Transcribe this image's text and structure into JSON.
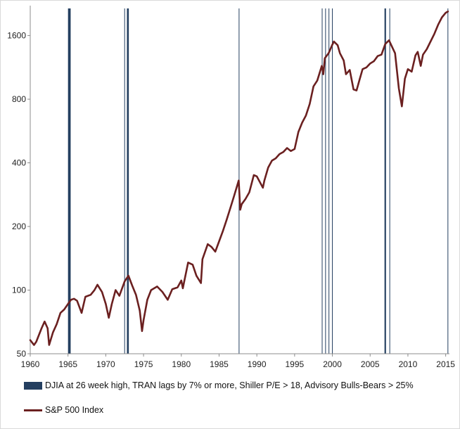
{
  "chart_data": {
    "type": "line",
    "xlim": [
      1960,
      2015.5
    ],
    "ylim": [
      50,
      2150
    ],
    "yscale": "log2",
    "yticks": [
      50,
      100,
      200,
      400,
      800,
      1600
    ],
    "ytick_labels": [
      "50",
      "100",
      "200",
      "400",
      "800",
      "1600"
    ],
    "xticks": [
      1960,
      1965,
      1970,
      1975,
      1980,
      1985,
      1990,
      1995,
      2000,
      2005,
      2010,
      2015
    ],
    "xtick_labels": [
      "1960",
      "1965",
      "1970",
      "1975",
      "1980",
      "1985",
      "1990",
      "1995",
      "2000",
      "2005",
      "2010",
      "2015"
    ],
    "grid": false,
    "legend_position": "bottom",
    "colors": {
      "signal": "#243f60",
      "index": "#6b2020"
    },
    "series": [
      {
        "name": "DJIA at 26 week high, TRAN lags by 7% or more, Shiller P/E > 18, Advisory Bulls-Bears > 25%",
        "kind": "signal-bands",
        "intervals": [
          [
            1965.0,
            1965.35
          ],
          [
            1972.45,
            1972.52
          ],
          [
            1972.8,
            1973.05
          ],
          [
            1987.6,
            1987.68
          ],
          [
            1998.6,
            1998.66
          ],
          [
            1999.05,
            1999.11
          ],
          [
            1999.5,
            1999.56
          ],
          [
            1999.95,
            2000.02
          ],
          [
            2006.9,
            2007.1
          ],
          [
            2007.55,
            2007.62
          ],
          [
            2015.25,
            2015.32
          ]
        ]
      },
      {
        "name": "S&P 500 Index",
        "kind": "line",
        "x": [
          1960,
          1960.5,
          1960.8,
          1961.5,
          1961.9,
          1962.3,
          1962.5,
          1963.0,
          1963.5,
          1964.0,
          1964.5,
          1965.0,
          1965.4,
          1965.8,
          1966.2,
          1966.8,
          1967.3,
          1968.0,
          1968.5,
          1968.9,
          1969.5,
          1970.0,
          1970.4,
          1970.8,
          1971.3,
          1971.8,
          1972.5,
          1973.0,
          1973.5,
          1974.0,
          1974.5,
          1974.8,
          1975.0,
          1975.5,
          1976.0,
          1976.8,
          1977.5,
          1978.2,
          1978.8,
          1979.5,
          1980.0,
          1980.2,
          1980.9,
          1981.5,
          1982.0,
          1982.6,
          1982.8,
          1983.5,
          1984.0,
          1984.5,
          1985.0,
          1985.5,
          1986.0,
          1986.5,
          1987.0,
          1987.6,
          1987.8,
          1988.0,
          1988.5,
          1989.0,
          1989.6,
          1990.0,
          1990.8,
          1991.0,
          1991.5,
          1992.0,
          1992.5,
          1993.0,
          1993.5,
          1994.0,
          1994.5,
          1995.0,
          1995.5,
          1996.0,
          1996.5,
          1997.0,
          1997.5,
          1998.0,
          1998.6,
          1998.8,
          1999.0,
          1999.5,
          2000.0,
          2000.2,
          2000.7,
          2001.0,
          2001.5,
          2001.8,
          2002.3,
          2002.8,
          2003.2,
          2003.6,
          2004.0,
          2004.5,
          2005.0,
          2005.5,
          2006.0,
          2006.5,
          2007.0,
          2007.5,
          2007.8,
          2008.3,
          2008.8,
          2009.2,
          2009.6,
          2010.0,
          2010.5,
          2011.0,
          2011.3,
          2011.7,
          2012.0,
          2012.5,
          2013.0,
          2013.5,
          2014.0,
          2014.5,
          2015.0,
          2015.3
        ],
        "y": [
          58,
          55,
          57,
          66,
          71,
          66,
          55,
          63,
          69,
          78,
          81,
          86,
          90,
          91,
          89,
          78,
          93,
          95,
          100,
          106,
          98,
          86,
          74,
          86,
          100,
          94,
          110,
          117,
          105,
          95,
          80,
          64,
          72,
          90,
          100,
          104,
          98,
          90,
          101,
          103,
          111,
          102,
          135,
          132,
          117,
          108,
          140,
          165,
          160,
          152,
          170,
          190,
          215,
          245,
          280,
          330,
          240,
          255,
          270,
          290,
          350,
          345,
          305,
          330,
          380,
          410,
          420,
          440,
          450,
          470,
          455,
          465,
          560,
          620,
          670,
          760,
          920,
          980,
          1150,
          1050,
          1250,
          1320,
          1450,
          1500,
          1440,
          1320,
          1220,
          1050,
          1100,
          890,
          880,
          990,
          1110,
          1130,
          1180,
          1210,
          1280,
          1300,
          1460,
          1520,
          1440,
          1320,
          900,
          740,
          1000,
          1110,
          1080,
          1290,
          1340,
          1150,
          1300,
          1380,
          1500,
          1630,
          1800,
          1950,
          2050,
          2080
        ]
      }
    ]
  }
}
